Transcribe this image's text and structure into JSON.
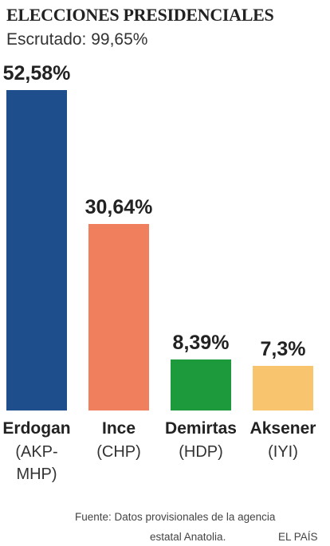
{
  "chart_data": {
    "type": "bar",
    "title": "ELECCIONES PRESIDENCIALES",
    "subtitle": "Escrutado: 99,65%",
    "categories": [
      "Erdogan",
      "Ince",
      "Demirtas",
      "Aksener"
    ],
    "parties": [
      "(AKP-MHP)",
      "(CHP)",
      "(HDP)",
      "(IYI)"
    ],
    "values": [
      52.58,
      30.64,
      8.39,
      7.3
    ],
    "value_labels": [
      "52,58%",
      "30,64%",
      "8,39%",
      "7,3%"
    ],
    "colors": [
      "#1f4e8c",
      "#f07f5e",
      "#1d9a3c",
      "#f8c46e"
    ],
    "source": [
      "Fuente: Datos provisionales de la agencia",
      "estatal Anatolia."
    ],
    "credit": "EL PAÍS"
  }
}
